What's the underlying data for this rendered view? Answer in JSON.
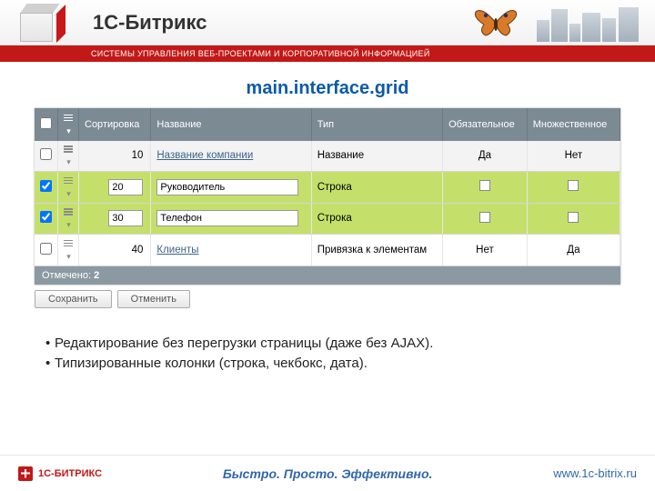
{
  "header": {
    "brand": "1С-Битрикс",
    "tagline": "СИСТЕМЫ УПРАВЛЕНИЯ ВЕБ-ПРОЕКТАМИ И КОРПОРАТИВНОЙ ИНФОРМАЦИЕЙ"
  },
  "page": {
    "title": "main.interface.grid"
  },
  "grid": {
    "columns": [
      "",
      "",
      "Сортировка",
      "Название",
      "Тип",
      "Обязательное",
      "Множественное"
    ],
    "rows": [
      {
        "checked": false,
        "sort": "10",
        "name": "Название компании",
        "name_is_link": true,
        "type": "Название",
        "required": "Да",
        "multiple": "Нет",
        "editing": false
      },
      {
        "checked": true,
        "sort": "20",
        "name": "Руководитель",
        "name_is_link": false,
        "type": "Строка",
        "required": "",
        "multiple": "",
        "editing": true
      },
      {
        "checked": true,
        "sort": "30",
        "name": "Телефон",
        "name_is_link": false,
        "type": "Строка",
        "required": "",
        "multiple": "",
        "editing": true
      },
      {
        "checked": false,
        "sort": "40",
        "name": "Клиенты",
        "name_is_link": true,
        "type": "Привязка к элементам",
        "required": "Нет",
        "multiple": "Да",
        "editing": false
      }
    ],
    "selection": {
      "label": "Отмечено:",
      "count": "2"
    },
    "buttons": {
      "save": "Сохранить",
      "cancel": "Отменить"
    }
  },
  "bullets": [
    "Редактирование без перегрузки страницы (даже без AJAX).",
    "Типизированные колонки (строка, чекбокс, дата)."
  ],
  "footer": {
    "logo_text": "1С-БИТРИКС",
    "slogan": "Быстро. Просто. Эффективно.",
    "url": "www.1c-bitrix.ru"
  },
  "colors": {
    "header_bar": "#c21818",
    "thead_bg": "#7c8a94",
    "sel_row": "#c5e06a",
    "sel_footer": "#8b99a3",
    "link": "#3c648a",
    "title": "#0b5aa6"
  }
}
